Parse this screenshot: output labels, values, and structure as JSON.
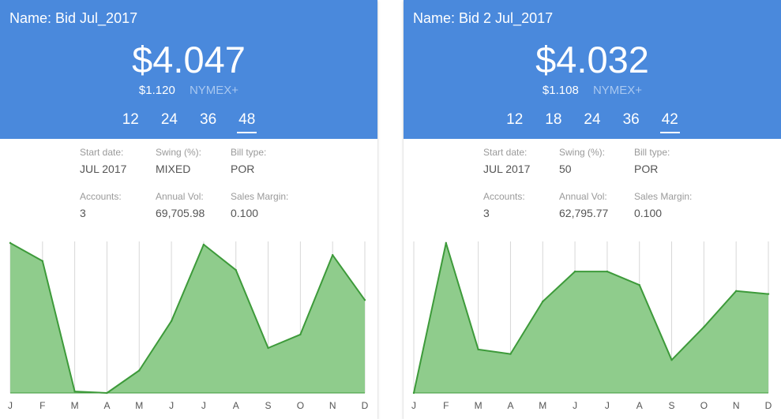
{
  "colors": {
    "header_bg": "#4a89dc",
    "header_text": "#ffffff",
    "index_text": "#a9c8f0",
    "area_fill": "#8fcc8c",
    "area_stroke": "#3d9a3a",
    "grid": "#d7d7d7",
    "label": "#9a9a9a",
    "value": "#555555"
  },
  "cards": [
    {
      "name": "Name: Bid Jul_2017",
      "price": "$4.047",
      "sub_value": "$1.120",
      "index": "NYMEX+",
      "terms": [
        "12",
        "24",
        "36",
        "48"
      ],
      "active_term": "48",
      "fields": {
        "start_date_label": "Start date:",
        "start_date": "JUL 2017",
        "swing_label": "Swing (%):",
        "swing": "MIXED",
        "bill_type_label": "Bill type:",
        "bill_type": "POR",
        "accounts_label": "Accounts:",
        "accounts": "3",
        "annual_vol_label": "Annual Vol:",
        "annual_vol": "69,705.98",
        "sales_margin_label": "Sales Margin:",
        "sales_margin": "0.100"
      }
    },
    {
      "name": "Name: Bid 2 Jul_2017",
      "price": "$4.032",
      "sub_value": "$1.108",
      "index": "NYMEX+",
      "terms": [
        "12",
        "18",
        "24",
        "36",
        "42"
      ],
      "active_term": "42",
      "fields": {
        "start_date_label": "Start date:",
        "start_date": "JUL 2017",
        "swing_label": "Swing (%):",
        "swing": "50",
        "bill_type_label": "Bill type:",
        "bill_type": "POR",
        "accounts_label": "Accounts:",
        "accounts": "3",
        "annual_vol_label": "Annual Vol:",
        "annual_vol": "62,795.77",
        "sales_margin_label": "Sales Margin:",
        "sales_margin": "0.100"
      }
    }
  ],
  "chart_data": [
    {
      "type": "area",
      "categories": [
        "J",
        "F",
        "M",
        "A",
        "M",
        "J",
        "J",
        "A",
        "S",
        "O",
        "N",
        "D"
      ],
      "values": [
        100,
        88,
        1,
        0,
        15,
        48,
        99,
        82,
        30,
        39,
        92,
        62
      ],
      "ylim": [
        0,
        100
      ],
      "grid": true
    },
    {
      "type": "area",
      "categories": [
        "J",
        "F",
        "M",
        "A",
        "M",
        "J",
        "J",
        "A",
        "S",
        "O",
        "N",
        "D"
      ],
      "values": [
        0,
        100,
        29,
        26,
        61,
        81,
        81,
        72,
        22,
        44,
        68,
        66
      ],
      "ylim": [
        0,
        100
      ],
      "grid": true
    }
  ]
}
